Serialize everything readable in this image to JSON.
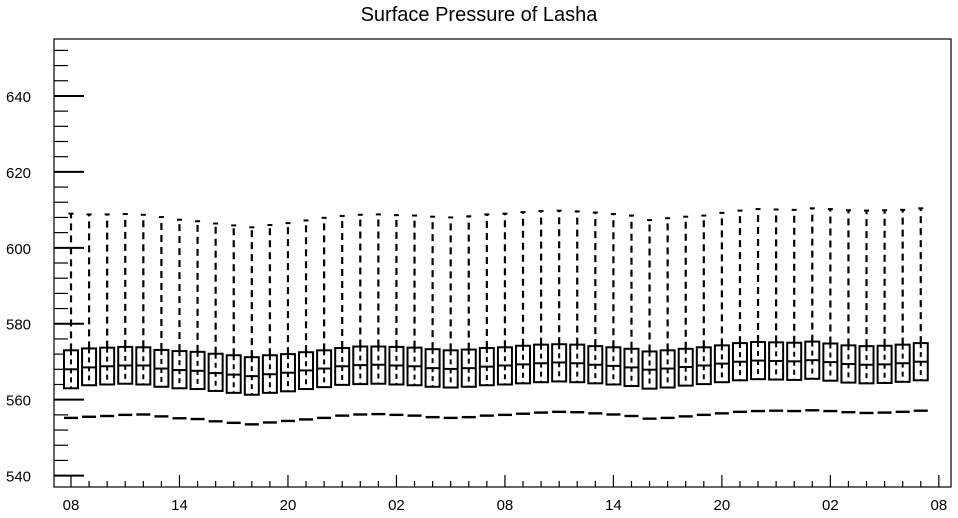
{
  "chart_data": {
    "type": "box",
    "title": "Surface Pressure of Lasha",
    "xlabel": "",
    "ylabel": "",
    "ylim": [
      537,
      655
    ],
    "y_ticks": [
      540,
      560,
      580,
      600,
      620,
      640
    ],
    "x_tick_labels": [
      "08",
      "14",
      "20",
      "02",
      "08",
      "14",
      "20",
      "02",
      "08"
    ],
    "x_tick_positions": [
      0,
      6,
      12,
      18,
      24,
      30,
      36,
      42,
      48
    ],
    "grid": false,
    "legend": "none",
    "boxes": [
      {
        "x": 0,
        "min": 555.2,
        "q1": 563.0,
        "median": 568.0,
        "q3": 573.0,
        "max": 609.0
      },
      {
        "x": 1,
        "min": 555.5,
        "q1": 563.8,
        "median": 568.5,
        "q3": 573.5,
        "max": 608.8
      },
      {
        "x": 2,
        "min": 555.7,
        "q1": 564.0,
        "median": 568.8,
        "q3": 573.7,
        "max": 608.8
      },
      {
        "x": 3,
        "min": 556.0,
        "q1": 564.2,
        "median": 569.0,
        "q3": 573.9,
        "max": 608.9
      },
      {
        "x": 4,
        "min": 556.1,
        "q1": 564.0,
        "median": 569.0,
        "q3": 573.8,
        "max": 608.7
      },
      {
        "x": 5,
        "min": 555.6,
        "q1": 563.4,
        "median": 568.2,
        "q3": 573.1,
        "max": 608.1
      },
      {
        "x": 6,
        "min": 555.1,
        "q1": 563.0,
        "median": 567.8,
        "q3": 572.8,
        "max": 607.4
      },
      {
        "x": 7,
        "min": 554.9,
        "q1": 562.8,
        "median": 567.6,
        "q3": 572.6,
        "max": 607.0
      },
      {
        "x": 8,
        "min": 554.3,
        "q1": 562.3,
        "median": 567.0,
        "q3": 572.1,
        "max": 606.4
      },
      {
        "x": 9,
        "min": 553.9,
        "q1": 561.8,
        "median": 566.6,
        "q3": 571.7,
        "max": 605.9
      },
      {
        "x": 10,
        "min": 553.5,
        "q1": 561.3,
        "median": 566.2,
        "q3": 571.2,
        "max": 605.4
      },
      {
        "x": 11,
        "min": 554.0,
        "q1": 561.8,
        "median": 566.7,
        "q3": 571.7,
        "max": 606.0
      },
      {
        "x": 12,
        "min": 554.4,
        "q1": 562.2,
        "median": 567.1,
        "q3": 572.0,
        "max": 606.5
      },
      {
        "x": 13,
        "min": 554.8,
        "q1": 562.8,
        "median": 567.7,
        "q3": 572.5,
        "max": 607.2
      },
      {
        "x": 14,
        "min": 555.2,
        "q1": 563.3,
        "median": 568.2,
        "q3": 573.0,
        "max": 607.9
      },
      {
        "x": 15,
        "min": 555.8,
        "q1": 563.9,
        "median": 568.8,
        "q3": 573.6,
        "max": 608.4
      },
      {
        "x": 16,
        "min": 556.1,
        "q1": 564.1,
        "median": 569.1,
        "q3": 574.0,
        "max": 608.7
      },
      {
        "x": 17,
        "min": 556.2,
        "q1": 564.2,
        "median": 569.2,
        "q3": 574.0,
        "max": 608.8
      },
      {
        "x": 18,
        "min": 556.0,
        "q1": 564.0,
        "median": 569.0,
        "q3": 573.9,
        "max": 608.6
      },
      {
        "x": 19,
        "min": 555.8,
        "q1": 563.8,
        "median": 568.8,
        "q3": 573.7,
        "max": 608.5
      },
      {
        "x": 20,
        "min": 555.4,
        "q1": 563.4,
        "median": 568.3,
        "q3": 573.3,
        "max": 608.2
      },
      {
        "x": 21,
        "min": 555.2,
        "q1": 563.2,
        "median": 568.1,
        "q3": 573.0,
        "max": 608.0
      },
      {
        "x": 22,
        "min": 555.4,
        "q1": 563.4,
        "median": 568.3,
        "q3": 573.2,
        "max": 608.3
      },
      {
        "x": 23,
        "min": 555.8,
        "q1": 563.8,
        "median": 568.7,
        "q3": 573.6,
        "max": 608.8
      },
      {
        "x": 24,
        "min": 556.0,
        "q1": 564.0,
        "median": 569.0,
        "q3": 573.8,
        "max": 609.0
      },
      {
        "x": 25,
        "min": 556.3,
        "q1": 564.3,
        "median": 569.3,
        "q3": 574.2,
        "max": 609.4
      },
      {
        "x": 26,
        "min": 556.6,
        "q1": 564.6,
        "median": 569.6,
        "q3": 574.5,
        "max": 609.7
      },
      {
        "x": 27,
        "min": 556.8,
        "q1": 564.8,
        "median": 569.8,
        "q3": 574.6,
        "max": 609.8
      },
      {
        "x": 28,
        "min": 556.7,
        "q1": 564.6,
        "median": 569.6,
        "q3": 574.5,
        "max": 609.6
      },
      {
        "x": 29,
        "min": 556.4,
        "q1": 564.3,
        "median": 569.2,
        "q3": 574.1,
        "max": 609.3
      },
      {
        "x": 30,
        "min": 556.1,
        "q1": 564.0,
        "median": 568.9,
        "q3": 573.8,
        "max": 608.9
      },
      {
        "x": 31,
        "min": 555.7,
        "q1": 563.6,
        "median": 568.5,
        "q3": 573.4,
        "max": 608.5
      },
      {
        "x": 32,
        "min": 555.0,
        "q1": 562.9,
        "median": 567.9,
        "q3": 572.7,
        "max": 607.3
      },
      {
        "x": 33,
        "min": 555.2,
        "q1": 563.2,
        "median": 568.2,
        "q3": 573.0,
        "max": 607.8
      },
      {
        "x": 34,
        "min": 555.6,
        "q1": 563.7,
        "median": 568.6,
        "q3": 573.4,
        "max": 608.2
      },
      {
        "x": 35,
        "min": 556.0,
        "q1": 564.1,
        "median": 569.0,
        "q3": 573.8,
        "max": 608.5
      },
      {
        "x": 36,
        "min": 556.4,
        "q1": 564.6,
        "median": 569.5,
        "q3": 574.3,
        "max": 609.2
      },
      {
        "x": 37,
        "min": 556.8,
        "q1": 565.1,
        "median": 570.0,
        "q3": 574.9,
        "max": 609.8
      },
      {
        "x": 38,
        "min": 557.0,
        "q1": 565.4,
        "median": 570.3,
        "q3": 575.2,
        "max": 610.2
      },
      {
        "x": 39,
        "min": 557.1,
        "q1": 565.3,
        "median": 570.2,
        "q3": 575.1,
        "max": 610.1
      },
      {
        "x": 40,
        "min": 557.0,
        "q1": 565.2,
        "median": 570.1,
        "q3": 575.0,
        "max": 610.0
      },
      {
        "x": 41,
        "min": 557.2,
        "q1": 565.5,
        "median": 570.4,
        "q3": 575.3,
        "max": 610.4
      },
      {
        "x": 42,
        "min": 557.0,
        "q1": 565.0,
        "median": 569.9,
        "q3": 574.8,
        "max": 610.2
      },
      {
        "x": 43,
        "min": 556.7,
        "q1": 564.5,
        "median": 569.4,
        "q3": 574.3,
        "max": 609.9
      },
      {
        "x": 44,
        "min": 556.5,
        "q1": 564.3,
        "median": 569.2,
        "q3": 574.1,
        "max": 609.8
      },
      {
        "x": 45,
        "min": 556.6,
        "q1": 564.4,
        "median": 569.3,
        "q3": 574.2,
        "max": 609.9
      },
      {
        "x": 46,
        "min": 556.8,
        "q1": 564.7,
        "median": 569.6,
        "q3": 574.5,
        "max": 610.0
      },
      {
        "x": 47,
        "min": 557.1,
        "q1": 565.1,
        "median": 570.0,
        "q3": 574.9,
        "max": 610.4
      }
    ]
  }
}
